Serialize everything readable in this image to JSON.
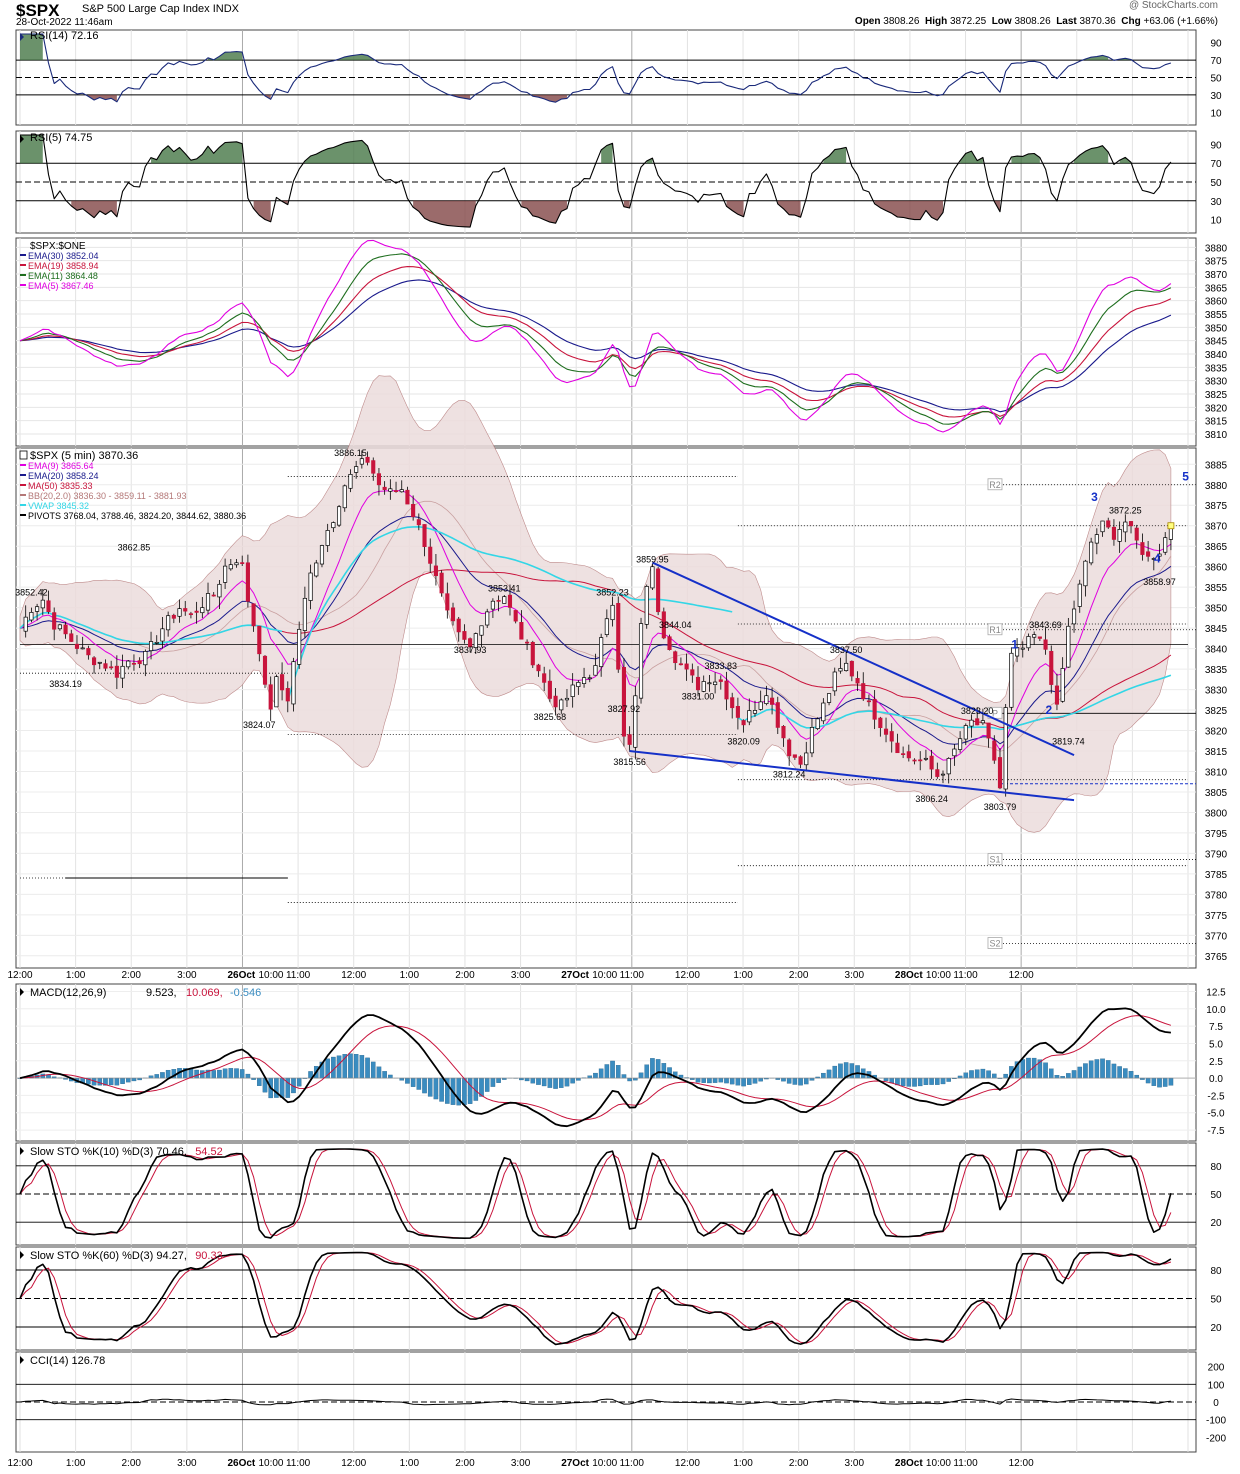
{
  "header": {
    "symbol": "$SPX",
    "name": "S&P 500 Large Cap Index",
    "exchange": "INDX",
    "datetime": "28-Oct-2022 11:46am",
    "watermark": "@ StockCharts.com",
    "open_label": "Open",
    "open": "3808.26",
    "high_label": "High",
    "high": "3872.25",
    "low_label": "Low",
    "low": "3808.26",
    "last_label": "Last",
    "last": "3870.36",
    "chg_label": "Chg",
    "chg": "+63.06 (+1.66%)"
  },
  "colors": {
    "up": "#000000",
    "down": "#c8143c",
    "ema9": "#e000e0",
    "ema20": "#1a1a8c",
    "ma50": "#c8143c",
    "bb": "#b47878",
    "vwap": "#33d6e6",
    "trend": "#1530c8",
    "rsi14": "#1a2a7a",
    "overbought": "#3a6e3a",
    "oversold": "#7a3a3a",
    "macd_hist": "#3a8cc0"
  },
  "x_axis": {
    "labels": [
      "12:00",
      "1:00",
      "2:00",
      "3:00",
      "26Oct",
      "10:00",
      "11:00",
      "12:00",
      "1:00",
      "2:00",
      "3:00",
      "27Oct",
      "10:00",
      "11:00",
      "12:00",
      "1:00",
      "2:00",
      "3:00",
      "28Oct",
      "10:00",
      "11:00",
      "12:00"
    ]
  },
  "panels": {
    "rsi14": {
      "label": "RSI(14) 72.16",
      "ticks": [
        "90",
        "70",
        "50",
        "30",
        "10"
      ]
    },
    "rsi5": {
      "label": "RSI(5) 74.75",
      "ticks": [
        "90",
        "70",
        "50",
        "30",
        "10"
      ]
    },
    "ema": {
      "label": "$SPX:$ONE",
      "legend": [
        {
          "text": "EMA(30) 3852.04",
          "color": "#1a1a8c"
        },
        {
          "text": "EMA(19) 3858.94",
          "color": "#c8143c"
        },
        {
          "text": "EMA(11) 3864.48",
          "color": "#1e6e1e"
        },
        {
          "text": "EMA(5) 3867.46",
          "color": "#e000e0"
        }
      ],
      "ticks": [
        "3880",
        "3875",
        "3870",
        "3865",
        "3860",
        "3855",
        "3850",
        "3845",
        "3840",
        "3835",
        "3830",
        "3825",
        "3820",
        "3815",
        "3810"
      ]
    },
    "price": {
      "label": "$SPX (5 min) 3870.36",
      "legend": [
        {
          "text": "EMA(9) 3865.64",
          "color": "#e000e0"
        },
        {
          "text": "EMA(20) 3858.24",
          "color": "#1a1a8c"
        },
        {
          "text": "MA(50) 3835.33",
          "color": "#c8143c"
        },
        {
          "text": "BB(20,2.0) 3836.30 - 3859.11 - 3881.93",
          "color": "#b47878"
        },
        {
          "text": "VWAP 3845.32",
          "color": "#33d6e6"
        },
        {
          "text": "PIVOTS 3768.04, 3788.46, 3824.20, 3844.62, 3880.36",
          "color": "#000000"
        }
      ],
      "ticks": [
        "3885",
        "3880",
        "3875",
        "3870",
        "3865",
        "3860",
        "3855",
        "3850",
        "3845",
        "3840",
        "3835",
        "3830",
        "3825",
        "3820",
        "3815",
        "3810",
        "3805",
        "3800",
        "3795",
        "3790",
        "3785",
        "3780",
        "3775",
        "3770",
        "3765"
      ],
      "annotations": [
        "3852.42",
        "3834.19",
        "3862.85",
        "3824.07",
        "3886.15",
        "3837.93",
        "3853.41",
        "3825.68",
        "3852.23",
        "3827.92",
        "3815.56",
        "3859.95",
        "3844.04",
        "3831.00",
        "3833.83",
        "3820.09",
        "3812.24",
        "3837.50",
        "3806.24",
        "3823.20",
        "3803.79",
        "3843.69",
        "3819.74",
        "3872.25",
        "3858.97"
      ],
      "pivot_labels": [
        "R2",
        "R1",
        "P",
        "S1",
        "S2"
      ],
      "wave_labels": [
        "1",
        "2",
        "3",
        "4",
        "5"
      ]
    },
    "macd": {
      "label": "MACD(12,26,9)",
      "v1": "9.523",
      "v2": "10.069",
      "v3": "-0.546",
      "ticks": [
        "12.5",
        "10.0",
        "7.5",
        "5.0",
        "2.5",
        "0.0",
        "-2.5",
        "-5.0",
        "-7.5"
      ]
    },
    "sto10": {
      "label": "Slow STO %K(10) %D(3) 70.46,",
      "v2": "54.52",
      "ticks": [
        "80",
        "50",
        "20"
      ]
    },
    "sto60": {
      "label": "Slow STO %K(60) %D(3) 94.27,",
      "v2": "90.33",
      "ticks": [
        "80",
        "50",
        "20"
      ]
    },
    "cci": {
      "label": "CCI(14) 126.78",
      "ticks": [
        "200",
        "100",
        "0",
        "-100",
        "-200"
      ]
    }
  },
  "chart_data": {
    "type": "line",
    "title": "$SPX (5 min) 3870.36",
    "series": [
      {
        "name": "EMA(9) 3865.64",
        "values": []
      },
      {
        "name": "EMA(20) 3858.24",
        "values": []
      },
      {
        "name": "MA(50) 3835.33",
        "values": []
      },
      {
        "name": "VWAP 3845.32",
        "values": []
      }
    ],
    "ohlc_last": {
      "open": 3808.26,
      "high": 3872.25,
      "low": 3808.26,
      "close": 3870.36
    },
    "price_path": [
      [
        0,
        3845
      ],
      [
        2,
        3850
      ],
      [
        4,
        3852
      ],
      [
        6,
        3846
      ],
      [
        9,
        3842
      ],
      [
        12,
        3838
      ],
      [
        15,
        3836
      ],
      [
        17,
        3834
      ],
      [
        19,
        3837
      ],
      [
        22,
        3838
      ],
      [
        25,
        3845
      ],
      [
        28,
        3850
      ],
      [
        30,
        3848
      ],
      [
        32,
        3851
      ],
      [
        34,
        3853
      ],
      [
        36,
        3860
      ],
      [
        38,
        3862
      ],
      [
        39,
        3860
      ],
      [
        40,
        3852
      ],
      [
        42,
        3840
      ],
      [
        43,
        3830
      ],
      [
        44,
        3826
      ],
      [
        45,
        3832
      ],
      [
        47,
        3828
      ],
      [
        49,
        3845
      ],
      [
        51,
        3858
      ],
      [
        53,
        3866
      ],
      [
        55,
        3872
      ],
      [
        57,
        3880
      ],
      [
        59,
        3884
      ],
      [
        61,
        3886
      ],
      [
        63,
        3880
      ],
      [
        65,
        3878
      ],
      [
        67,
        3879
      ],
      [
        69,
        3873
      ],
      [
        71,
        3866
      ],
      [
        73,
        3857
      ],
      [
        75,
        3848
      ],
      [
        77,
        3843
      ],
      [
        79,
        3840
      ],
      [
        81,
        3847
      ],
      [
        83,
        3852
      ],
      [
        85,
        3853
      ],
      [
        87,
        3846
      ],
      [
        89,
        3840
      ],
      [
        91,
        3835
      ],
      [
        93,
        3828
      ],
      [
        95,
        3826
      ],
      [
        97,
        3830
      ],
      [
        99,
        3833
      ],
      [
        101,
        3835
      ],
      [
        103,
        3848
      ],
      [
        104,
        3852
      ],
      [
        105,
        3836
      ],
      [
        106,
        3818
      ],
      [
        107,
        3816
      ],
      [
        108,
        3828
      ],
      [
        109,
        3845
      ],
      [
        110,
        3856
      ],
      [
        111,
        3859
      ],
      [
        112,
        3850
      ],
      [
        113,
        3844
      ],
      [
        115,
        3838
      ],
      [
        117,
        3834
      ],
      [
        119,
        3831
      ],
      [
        121,
        3833
      ],
      [
        123,
        3832
      ],
      [
        125,
        3826
      ],
      [
        127,
        3822
      ],
      [
        129,
        3826
      ],
      [
        131,
        3830
      ],
      [
        133,
        3822
      ],
      [
        135,
        3815
      ],
      [
        137,
        3812
      ],
      [
        139,
        3820
      ],
      [
        141,
        3826
      ],
      [
        143,
        3833
      ],
      [
        145,
        3836
      ],
      [
        147,
        3832
      ],
      [
        149,
        3826
      ],
      [
        151,
        3822
      ],
      [
        153,
        3818
      ],
      [
        155,
        3814
      ],
      [
        157,
        3813
      ],
      [
        159,
        3812
      ],
      [
        161,
        3809
      ],
      [
        163,
        3812
      ],
      [
        165,
        3818
      ],
      [
        167,
        3822
      ],
      [
        169,
        3821
      ],
      [
        171,
        3813
      ],
      [
        172,
        3806
      ],
      [
        173,
        3825
      ],
      [
        174,
        3838
      ],
      [
        176,
        3840
      ],
      [
        178,
        3843
      ],
      [
        180,
        3840
      ],
      [
        182,
        3825
      ],
      [
        184,
        3845
      ],
      [
        186,
        3855
      ],
      [
        188,
        3866
      ],
      [
        190,
        3870
      ],
      [
        192,
        3868
      ],
      [
        194,
        3871
      ],
      [
        196,
        3866
      ],
      [
        198,
        3862
      ],
      [
        200,
        3864
      ],
      [
        202,
        3870
      ]
    ],
    "ylim": [
      3765,
      3887
    ],
    "sessions": [
      "26Oct",
      "27Oct",
      "28Oct"
    ]
  }
}
